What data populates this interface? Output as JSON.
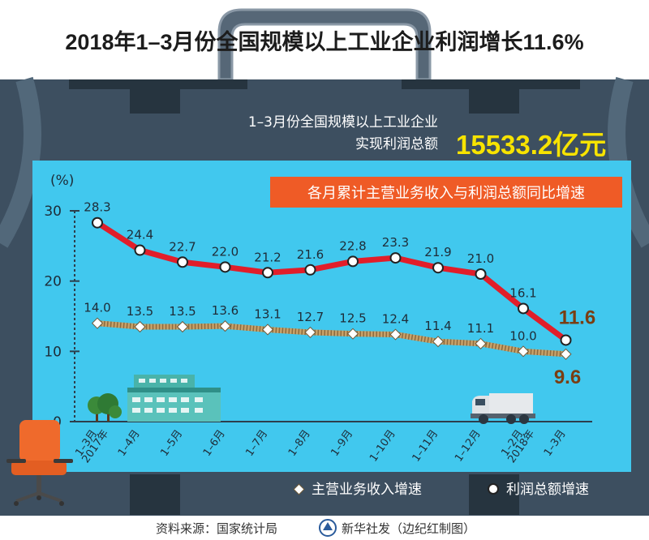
{
  "header": {
    "title": "2018年1–3月份全国规模以上工业企业利润增长11.6%"
  },
  "summary": {
    "line1": "1–3月份全国规模以上工业企业",
    "line2": "实现利润总额",
    "total_value": "15533.2亿元"
  },
  "legend": {
    "revenue_label": "主营业务收入增速",
    "profit_label": "利润总额增速"
  },
  "footer": {
    "source": "资料来源：国家统计局",
    "credit": "新华社发（边纪红制图）"
  },
  "colors": {
    "background_dark": "#3d4f60",
    "panel": "#41c8ee",
    "profit_line": "#e11e2a",
    "revenue_line": "#c8a26a",
    "banner": "#ef5b26",
    "highlight": "#f7e300",
    "emphasis_label": "#7a3e12"
  },
  "chart_data": {
    "type": "line",
    "title": "各月累计主营业务收入与利润总额同比增速",
    "ylabel": "(%)",
    "ylim": [
      0,
      30
    ],
    "yticks": [
      0,
      10,
      20,
      30
    ],
    "categories": [
      "1–3月",
      "1–4月",
      "1–5月",
      "1–6月",
      "1–7月",
      "1–8月",
      "1–9月",
      "1–10月",
      "1–11月",
      "1–12月",
      "1–2月",
      "1–3月"
    ],
    "year_labels": [
      {
        "index": 0,
        "text": "2017年"
      },
      {
        "index": 10,
        "text": "2018年"
      }
    ],
    "series": [
      {
        "name": "利润总额增速",
        "values": [
          28.3,
          24.4,
          22.7,
          22.0,
          21.2,
          21.6,
          22.8,
          23.3,
          21.9,
          21.0,
          16.1,
          11.6
        ]
      },
      {
        "name": "主营业务收入增速",
        "values": [
          14.0,
          13.5,
          13.5,
          13.6,
          13.1,
          12.7,
          12.5,
          12.4,
          11.4,
          11.1,
          10.0,
          9.6
        ]
      }
    ]
  }
}
